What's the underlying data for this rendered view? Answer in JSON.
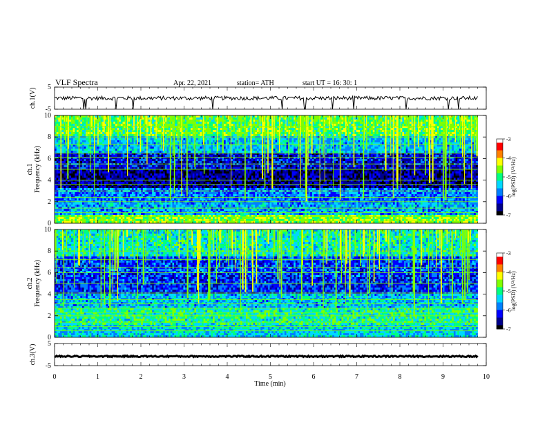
{
  "header": {
    "title": "VLF  Spectra",
    "date": "Apr. 22, 2021",
    "station": "station= ATH",
    "start_ut": "start  UT  =   16: 30: 1"
  },
  "chart_data": {
    "type": "heatmap",
    "xlabel": "Time  (min)",
    "xlim": [
      0,
      10
    ],
    "xticks": [
      0,
      1,
      2,
      3,
      4,
      5,
      6,
      7,
      8,
      9,
      10
    ],
    "data_end_min": 9.8,
    "panels": [
      {
        "id": "ch1-waveform",
        "kind": "timeseries",
        "ylabel": "ch.1(V)",
        "ylim": [
          -5,
          5
        ],
        "yticks": [
          5,
          -5
        ],
        "typical_level": 0,
        "noise_amplitude": 0.9,
        "spikes_to": -5
      },
      {
        "id": "ch1-spectrogram",
        "kind": "spectrogram",
        "ylabel": "ch.1\nFrequency  (kHz)",
        "ylim": [
          0,
          10
        ],
        "yticks": [
          0,
          2,
          4,
          6,
          8,
          10
        ],
        "colorbar": {
          "label": "log(PSD) (V²/Hz)",
          "range": [
            -7,
            -3
          ],
          "ticks": [
            -3,
            -4,
            -5,
            -6,
            -7
          ]
        },
        "horizontal_lines_khz": [
          0.3,
          0.6,
          1.0,
          1.4,
          2.0,
          2.4,
          3.0,
          3.6,
          4.0,
          5.0,
          5.5,
          6.1,
          6.5,
          7.3,
          8.0,
          9.0
        ],
        "typical_level_by_khz": [
          {
            "from": 0,
            "to": 0.8,
            "value": -4.6
          },
          {
            "from": 0.8,
            "to": 2.0,
            "value": -5.6
          },
          {
            "from": 2.0,
            "to": 3.2,
            "value": -5.8
          },
          {
            "from": 3.2,
            "to": 5.0,
            "value": -6.6
          },
          {
            "from": 5.0,
            "to": 6.6,
            "value": -6.3
          },
          {
            "from": 6.6,
            "to": 8.0,
            "value": -5.5
          },
          {
            "from": 8.0,
            "to": 10.0,
            "value": -4.8
          }
        ]
      },
      {
        "id": "ch2-spectrogram",
        "kind": "spectrogram",
        "ylabel": "ch.2\nFrequency  (kHz)",
        "ylim": [
          0,
          10
        ],
        "yticks": [
          0,
          2,
          4,
          6,
          8,
          10
        ],
        "colorbar": {
          "label": "log(PSD) (V²/Hz)",
          "range": [
            -7,
            -3
          ],
          "ticks": [
            -3,
            -4,
            -5,
            -6,
            -7
          ]
        },
        "horizontal_lines_khz": [
          0.6,
          1.0,
          1.4,
          2.0,
          2.3,
          2.7,
          3.1,
          3.5,
          4.1,
          5.0,
          6.0,
          6.5,
          7.2,
          8.0
        ],
        "typical_level_by_khz": [
          {
            "from": 0,
            "to": 1.2,
            "value": -5.4
          },
          {
            "from": 1.2,
            "to": 2.6,
            "value": -5.1
          },
          {
            "from": 2.6,
            "to": 4.0,
            "value": -5.5
          },
          {
            "from": 4.0,
            "to": 6.0,
            "value": -6.1
          },
          {
            "from": 6.0,
            "to": 7.5,
            "value": -6.0
          },
          {
            "from": 7.5,
            "to": 10.0,
            "value": -5.2
          }
        ]
      },
      {
        "id": "ch3-waveform",
        "kind": "timeseries",
        "ylabel": "ch.3(V)",
        "ylim": [
          -5,
          5
        ],
        "yticks": [
          5,
          -5
        ],
        "typical_level": -0.8,
        "noise_amplitude": 0.3
      }
    ],
    "grid": false
  },
  "colors": {
    "colormap": [
      "#000000",
      "#00008b",
      "#0000ff",
      "#0080ff",
      "#00d8ff",
      "#00ff80",
      "#80ff00",
      "#ffff00",
      "#ff8000",
      "#ff0000",
      "#ffffff"
    ],
    "axis": "#000000",
    "trace": "#000000"
  }
}
